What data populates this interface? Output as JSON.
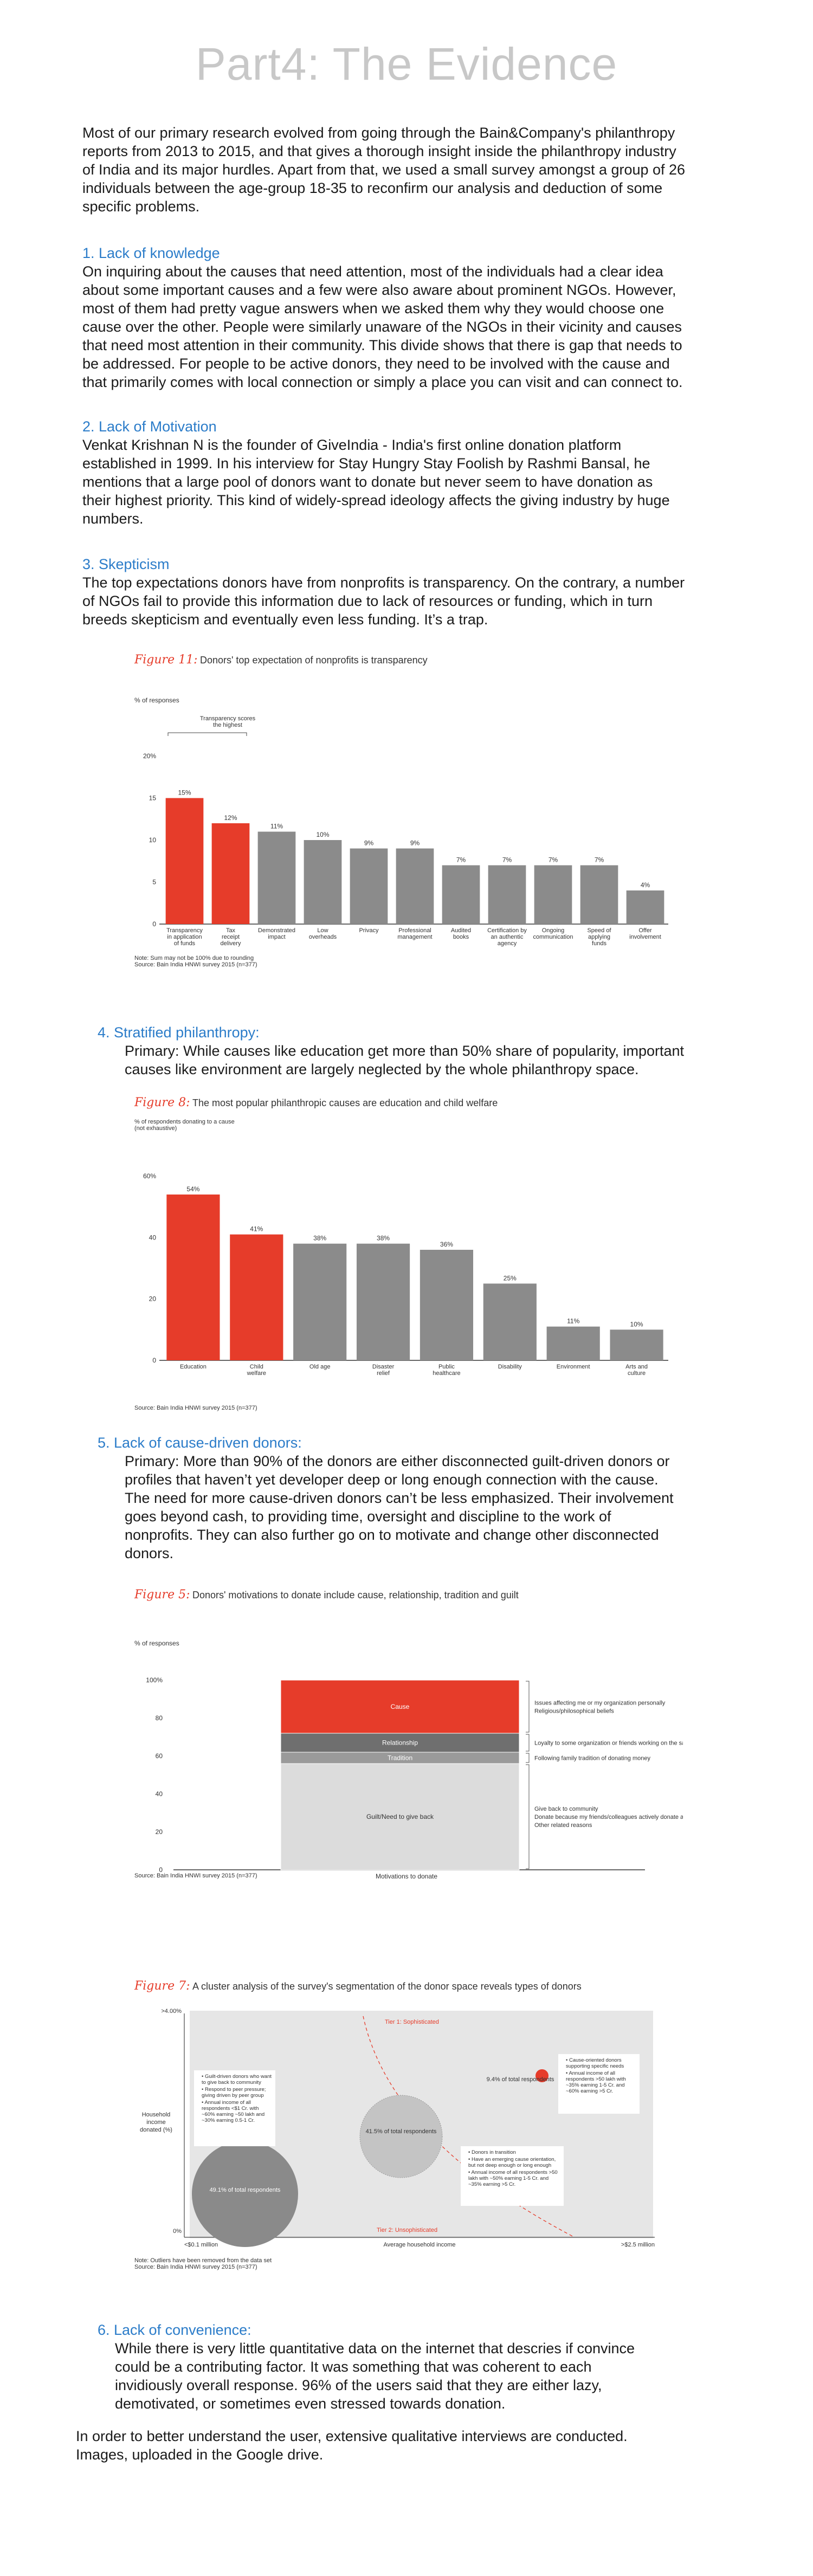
{
  "title": "Part4: The Evidence",
  "intro": [
    "Most of our primary research evolved from going through the Bain&Company's philanthropy",
    "reports from 2013 to 2015, and that gives a thorough insight inside the philanthropy industry",
    "of India and its major hurdles. Apart from that, we used a small survey amongst a group of 26",
    "individuals between the age-group 18-35 to reconfirm our analysis and deduction of some",
    "specific problems."
  ],
  "s1": {
    "heading": "1. Lack of knowledge",
    "lines": [
      "On inquiring about the causes that need attention, most of the individuals had a clear idea",
      "about some important causes and a few were also aware about prominent NGOs. However,",
      "most of them had pretty vague answers when we asked them why they would choose one",
      "cause over the other. People were similarly unaware of the NGOs in their vicinity and causes",
      "that need most attention in their community. This divide shows that there is gap that needs to",
      "be addressed. For people to be active donors, they need to be involved with the cause and",
      "that primarily comes with local connection or simply a place you can visit and can connect to."
    ]
  },
  "s2": {
    "heading": "2. Lack of Motivation",
    "lines": [
      "Venkat Krishnan N is the founder of GiveIndia - India's first online donation platform",
      "established in 1999. In his interview for Stay Hungry Stay Foolish by Rashmi Bansal, he",
      "mentions that a large pool of donors want to donate but never seem to have donation as",
      "their highest priority. This kind of widely-spread ideology affects the giving industry by huge",
      "numbers."
    ]
  },
  "s3": {
    "heading": "3. Skepticism",
    "lines": [
      "The top expectations donors have from nonprofits is transparency. On the contrary, a number",
      "of NGOs fail to provide this information due to lack of resources or funding, which in turn",
      "breeds skepticism and eventually even less funding. It’s a trap."
    ]
  },
  "fig1": {
    "label": "Figure 11:",
    "title": "Donors' top expectation of nonprofits is transparency",
    "annotation": [
      "Transparency scores",
      "the highest"
    ],
    "note": [
      "Note: Sum may not be 100% due to rounding",
      "Source: Bain India HNWI survey 2015 (n=377)"
    ],
    "chart_data": {
      "type": "bar",
      "ylabel": "% of responses",
      "ylim": [
        0,
        20
      ],
      "yticks": [
        "0",
        "5",
        "10",
        "15",
        "20%"
      ],
      "categories": [
        "Transparency in application of funds",
        "Tax receipt delivery",
        "Demonstrated impact",
        "Low overheads",
        "Privacy",
        "Professional management",
        "Audited books",
        "Certification by an authentic agency",
        "Ongoing communication",
        "Speed of applying funds",
        "Offer involvement"
      ],
      "category_lines": [
        [
          "Transparency",
          "in application",
          "of funds"
        ],
        [
          "Tax",
          "receipt",
          "delivery"
        ],
        [
          "Demonstrated",
          "impact"
        ],
        [
          "Low",
          "overheads"
        ],
        [
          "Privacy"
        ],
        [
          "Professional",
          "management"
        ],
        [
          "Audited",
          "books"
        ],
        [
          "Certification by",
          "an authentic",
          "agency"
        ],
        [
          "Ongoing",
          "communication"
        ],
        [
          "Speed of",
          "applying",
          "funds"
        ],
        [
          "Offer",
          "involvement"
        ]
      ],
      "values": [
        15,
        12,
        11,
        10,
        9,
        9,
        7,
        7,
        7,
        7,
        4
      ],
      "data_labels": [
        "15%",
        "12%",
        "11%",
        "10%",
        "9%",
        "9%",
        "7%",
        "7%",
        "7%",
        "7%",
        "4%"
      ],
      "highlight": [
        true,
        true,
        false,
        false,
        false,
        false,
        false,
        false,
        false,
        false,
        false
      ],
      "colors": {
        "highlight": "#e63c2a",
        "normal": "#8b8b8b"
      }
    }
  },
  "s4": {
    "heading": "4. Stratified philanthropy:",
    "lines": [
      "Primary: While causes like education get more than 50% share of popularity, important",
      "causes like environment are largely neglected by the whole philanthropy space."
    ]
  },
  "fig2": {
    "label": "Figure 8:",
    "title": "The most popular philanthropic causes are education and child welfare",
    "subtitle": [
      "% of respondents donating to a cause",
      "(not exhaustive)"
    ],
    "note": "Source: Bain India HNWI survey 2015 (n=377)",
    "chart_data": {
      "type": "bar",
      "ylim": [
        0,
        60
      ],
      "yticks": [
        "0",
        "20",
        "40",
        "60%"
      ],
      "categories": [
        "Education",
        "Child welfare",
        "Old age",
        "Disaster relief",
        "Public healthcare",
        "Disability",
        "Environment",
        "Arts and culture"
      ],
      "category_lines": [
        [
          "Education"
        ],
        [
          "Child",
          "welfare"
        ],
        [
          "Old age"
        ],
        [
          "Disaster",
          "relief"
        ],
        [
          "Public",
          "healthcare"
        ],
        [
          "Disability"
        ],
        [
          "Environment"
        ],
        [
          "Arts and",
          "culture"
        ]
      ],
      "values": [
        54,
        41,
        38,
        38,
        36,
        25,
        11,
        10
      ],
      "data_labels": [
        "54%",
        "41%",
        "38%",
        "38%",
        "36%",
        "25%",
        "11%",
        "10%"
      ],
      "highlight": [
        true,
        true,
        false,
        false,
        false,
        false,
        false,
        false
      ],
      "colors": {
        "highlight": "#e63c2a",
        "normal": "#8b8b8b"
      }
    }
  },
  "s5": {
    "heading": "5. Lack of cause-driven donors:",
    "lines": [
      "Primary: More than 90% of the donors are either disconnected guilt-driven donors or",
      "profiles that haven’t yet developer deep or long enough connection with the cause.",
      "The need for more cause-driven donors can’t be less emphasized. Their involvement",
      "goes beyond cash, to providing time, oversight and discipline to the work of",
      "nonprofits. They can also further go on to motivate and change other disconnected",
      "donors."
    ]
  },
  "fig3": {
    "label": "Figure 5:",
    "title": "Donors' motivations to donate include cause, relationship, tradition and guilt",
    "note": "Source: Bain India HNWI survey 2015 (n=377)",
    "chart_data": {
      "type": "bar",
      "ylabel": "% of responses",
      "ylim": [
        0,
        100
      ],
      "yticks": [
        "0",
        "20",
        "40",
        "60",
        "80",
        "100%"
      ],
      "xlabel": "Motivations to donate",
      "segments": [
        {
          "name": "Guilt/Need to give back",
          "value": 56,
          "color": "#dcdcdc",
          "notes": [
            "Give back to community",
            "Donate because my friends/colleagues actively donate as well",
            "Other related reasons"
          ]
        },
        {
          "name": "Tradition",
          "value": 6,
          "color": "#9a9a9a",
          "notes": [
            "Following family tradition of donating money"
          ]
        },
        {
          "name": "Relationship",
          "value": 10,
          "color": "#6f6f6f",
          "notes": [
            "Loyalty to some organization or friends working on the same NGO"
          ]
        },
        {
          "name": "Cause",
          "value": 28,
          "color": "#e63c2a",
          "notes": [
            "Issues affecting me or my organization personally",
            "Religious/philosophical beliefs"
          ]
        }
      ]
    }
  },
  "fig4": {
    "label": "Figure 7:",
    "title": "A cluster analysis of the survey's segmentation of the donor space reveals types of donors",
    "yaxis": {
      "top": ">4.00%",
      "label": [
        "Household",
        "income",
        "donated (%)"
      ],
      "bottom": "0%"
    },
    "xaxis": {
      "left": "<$0.1 million",
      "label": "Average household income",
      "right": ">$2.5 million"
    },
    "tier1": "Tier 1: Sophisticated",
    "tier2": "Tier 2: Unsophisticated",
    "note": [
      "Note: Outliers have been removed from the data set",
      "Source: Bain India HNWI survey 2015 (n=377)"
    ],
    "chart_data": {
      "type": "scatter",
      "clusters": [
        {
          "label": "49.1% of total respondents",
          "share": 49.1,
          "color": "#888888",
          "notes": [
            "Guilt-driven donors who want to give back to community",
            "Respond to peer pressure; giving driven by peer group",
            "Annual income of all respondents <$1 Cr. with ~60% earning ~50 lakh and ~30% earning 0.5-1 Cr."
          ]
        },
        {
          "label": "41.5% of total respondents",
          "share": 41.5,
          "color": "#bbbbbb",
          "notes": [
            "Donors in transition",
            "Have an emerging cause orientation, but not deep enough or long enough",
            "Annual income of all respondents >50 lakh with ~50% earning 1-5 Cr. and ~35% earning >5 Cr."
          ]
        },
        {
          "label": "9.4% of total respondents",
          "share": 9.4,
          "color": "#e63c2a",
          "notes": [
            "Cause-oriented donors supporting specific needs",
            "Annual income of all respondents >50 lakh with ~35% earning 1-5 Cr. and ~60% earning >5 Cr."
          ]
        }
      ]
    }
  },
  "s6": {
    "heading": "6. Lack of convenience:",
    "lines": [
      "While there is very little quantitative data on the internet that descries if convince",
      "could be a contributing factor. It was something that was coherent to each",
      "invidiously overall response. 96% of the users said that they are either lazy,",
      "demotivated, or sometimes even stressed towards donation."
    ]
  },
  "closing": [
    "In order to better understand the user, extensive qualitative interviews are conducted.",
    "Images, uploaded in the Google drive."
  ]
}
